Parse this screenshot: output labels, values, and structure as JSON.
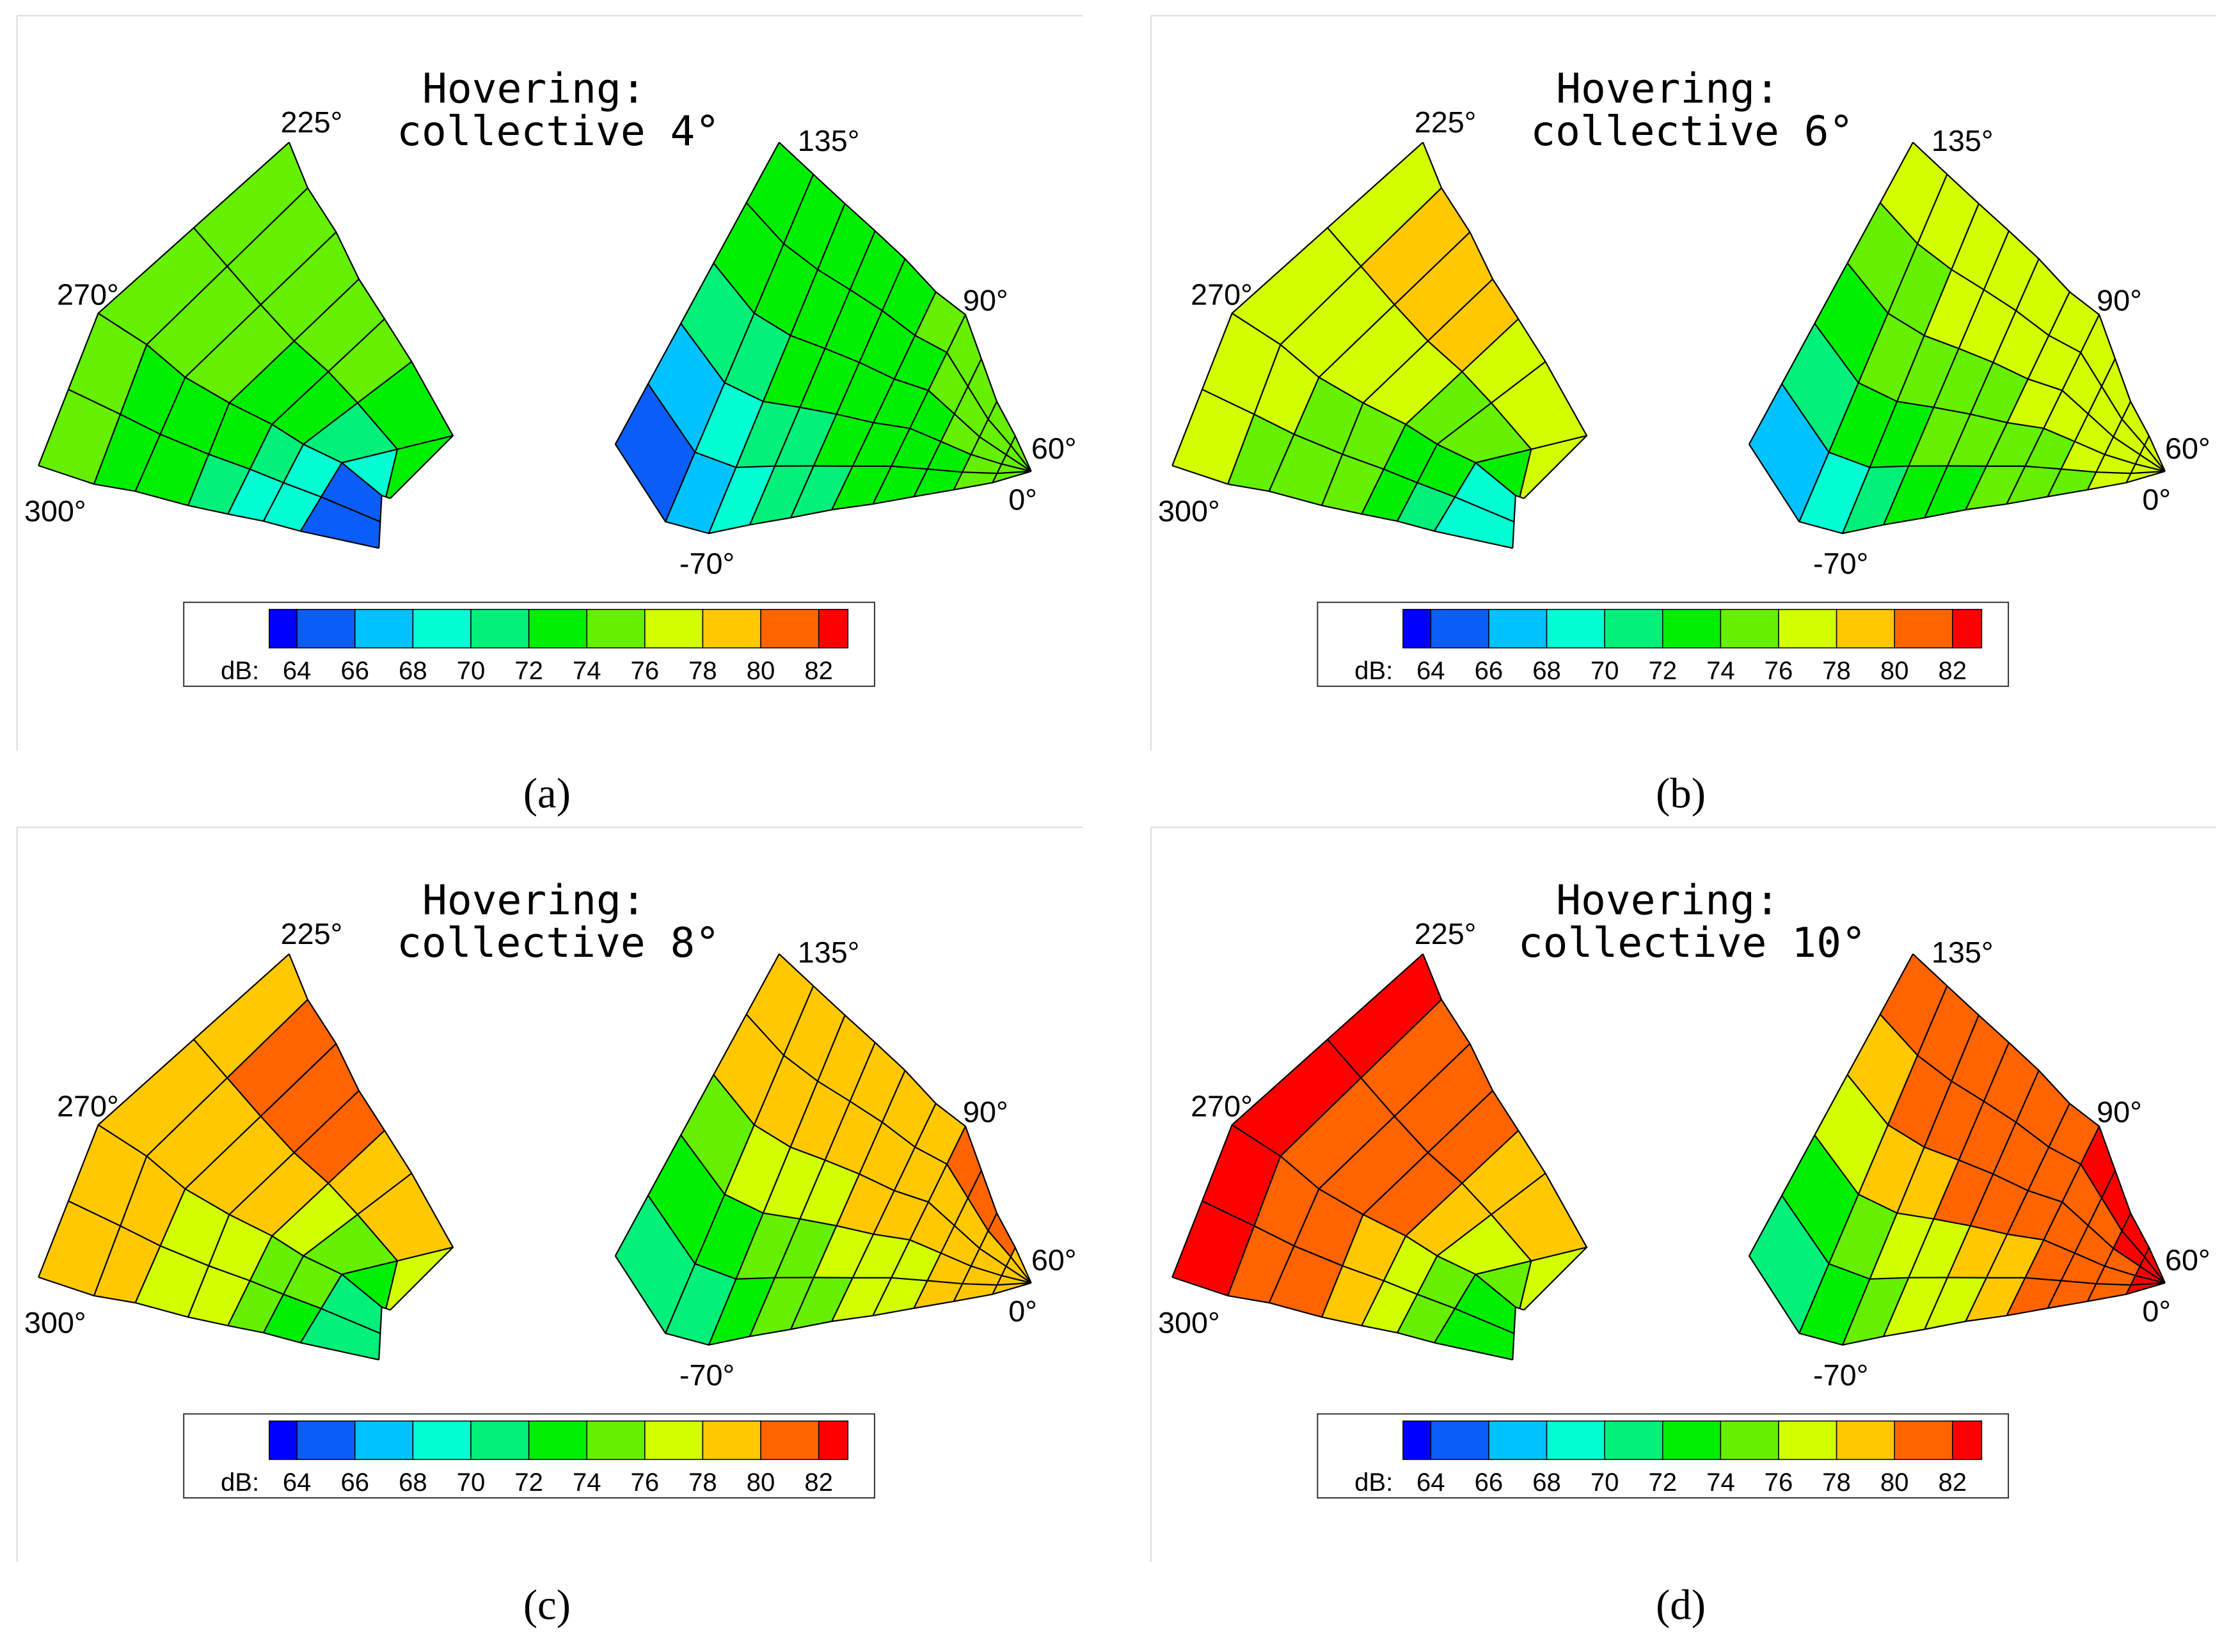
{
  "colorbar": {
    "prefix": "dB:",
    "levels": [
      62,
      64,
      66,
      68,
      70,
      72,
      74,
      76,
      78,
      80,
      82,
      83
    ],
    "tick_labels": [
      "64",
      "66",
      "68",
      "70",
      "72",
      "74",
      "76",
      "78",
      "80",
      "82"
    ],
    "colors": [
      "#0000ff",
      "#0a5df6",
      "#00c2ff",
      "#00ffd2",
      "#00f07a",
      "#00ef00",
      "#64f000",
      "#d2ff00",
      "#ffc800",
      "#ff6400",
      "#ff0000"
    ]
  },
  "angle_labels": {
    "left": [
      "225°",
      "270°",
      "300°"
    ],
    "right": [
      "135°",
      "90°",
      "60°",
      "0°",
      "-70°"
    ]
  },
  "chart_data": [
    {
      "type": "heatmap",
      "panel": "(a)",
      "title_line1": "Hovering:",
      "title_line2": "collective 4°",
      "colorbar_unit": "dB",
      "left_sector": {
        "description_angles": [
          "225°",
          "270°",
          "300°"
        ],
        "values_dB": [
          [
            75,
            75,
            75,
            74,
            74,
            74,
            74,
            73,
            73,
            72
          ],
          [
            75,
            75,
            74,
            74,
            73,
            73,
            72,
            71,
            70,
            68
          ],
          [
            74,
            74,
            73,
            73,
            72,
            71,
            70,
            69,
            67,
            65
          ],
          [
            74,
            73,
            73,
            72,
            71,
            70,
            69,
            68,
            66,
            65
          ]
        ]
      },
      "right_sector": {
        "description_angles": [
          "135°",
          "90°",
          "60°",
          "0°",
          "-70°"
        ],
        "values_dB": [
          [
            73,
            73,
            73,
            73,
            73,
            74,
            74,
            74,
            75,
            75
          ],
          [
            72,
            72,
            73,
            73,
            73,
            73,
            74,
            74,
            75,
            75
          ],
          [
            70,
            71,
            72,
            72,
            73,
            73,
            73,
            74,
            74,
            75
          ],
          [
            66,
            68,
            70,
            71,
            72,
            73,
            73,
            73,
            74,
            75
          ],
          [
            64,
            66,
            68,
            70,
            71,
            72,
            73,
            73,
            74,
            74
          ]
        ]
      }
    },
    {
      "type": "heatmap",
      "panel": "(b)",
      "title_line1": "Hovering:",
      "title_line2": "collective 6°",
      "colorbar_unit": "dB",
      "left_sector": {
        "description_angles": [
          "225°",
          "270°",
          "300°"
        ],
        "values_dB": [
          [
            77,
            77,
            78,
            78,
            78,
            78,
            77,
            77,
            76,
            76
          ],
          [
            77,
            77,
            77,
            76,
            76,
            75,
            75,
            74,
            74,
            73
          ],
          [
            77,
            76,
            76,
            75,
            74,
            74,
            73,
            72,
            71,
            69
          ],
          [
            77,
            76,
            75,
            75,
            74,
            73,
            72,
            71,
            70,
            68
          ]
        ]
      },
      "right_sector": {
        "description_angles": [
          "135°",
          "90°",
          "60°",
          "0°",
          "-70°"
        ],
        "values_dB": [
          [
            77,
            77,
            77,
            77,
            77,
            77,
            77,
            77,
            77,
            77
          ],
          [
            75,
            75,
            76,
            76,
            76,
            77,
            77,
            77,
            77,
            76
          ],
          [
            73,
            74,
            74,
            75,
            75,
            76,
            76,
            76,
            77,
            77
          ],
          [
            70,
            72,
            73,
            74,
            74,
            75,
            75,
            76,
            76,
            76
          ],
          [
            67,
            69,
            71,
            72,
            73,
            74,
            75,
            75,
            76,
            76
          ]
        ]
      }
    },
    {
      "type": "heatmap",
      "panel": "(c)",
      "title_line1": "Hovering:",
      "title_line2": "collective 8°",
      "colorbar_unit": "dB",
      "left_sector": {
        "description_angles": [
          "225°",
          "270°",
          "300°"
        ],
        "values_dB": [
          [
            79,
            79,
            80,
            80,
            81,
            80,
            79,
            78,
            77,
            76
          ],
          [
            79,
            79,
            79,
            78,
            78,
            77,
            76,
            75,
            74,
            73
          ],
          [
            79,
            79,
            78,
            77,
            77,
            76,
            75,
            74,
            73,
            71
          ],
          [
            79,
            78,
            78,
            77,
            76,
            75,
            74,
            73,
            72,
            70
          ]
        ]
      },
      "right_sector": {
        "description_angles": [
          "135°",
          "90°",
          "60°",
          "0°",
          "-70°"
        ],
        "values_dB": [
          [
            79,
            79,
            79,
            79,
            79,
            79,
            80,
            80,
            80,
            79
          ],
          [
            78,
            78,
            78,
            78,
            78,
            79,
            79,
            79,
            79,
            79
          ],
          [
            75,
            76,
            77,
            77,
            78,
            78,
            78,
            78,
            79,
            79
          ],
          [
            72,
            73,
            74,
            75,
            76,
            77,
            77,
            78,
            78,
            79
          ],
          [
            70,
            71,
            72,
            74,
            75,
            76,
            77,
            78,
            78,
            79
          ]
        ]
      }
    },
    {
      "type": "heatmap",
      "panel": "(d)",
      "title_line1": "Hovering:",
      "title_line2": "collective 10°",
      "colorbar_unit": "dB",
      "left_sector": {
        "description_angles": [
          "225°",
          "270°",
          "300°"
        ],
        "values_dB": [
          [
            82,
            82,
            81,
            81,
            81,
            80,
            79,
            78,
            77,
            76
          ],
          [
            82,
            81,
            81,
            80,
            80,
            79,
            78,
            77,
            75,
            74
          ],
          [
            82,
            81,
            81,
            80,
            79,
            78,
            77,
            75,
            74,
            72
          ],
          [
            82,
            81,
            80,
            80,
            79,
            78,
            76,
            75,
            73,
            72
          ]
        ]
      },
      "right_sector": {
        "description_angles": [
          "135°",
          "90°",
          "60°",
          "0°",
          "-70°"
        ],
        "values_dB": [
          [
            81,
            81,
            81,
            81,
            81,
            81,
            82,
            82,
            82,
            82
          ],
          [
            79,
            80,
            80,
            81,
            81,
            81,
            81,
            81,
            82,
            82
          ],
          [
            77,
            78,
            79,
            80,
            80,
            81,
            81,
            81,
            81,
            82
          ],
          [
            73,
            75,
            76,
            77,
            78,
            79,
            80,
            81,
            81,
            82
          ],
          [
            70,
            72,
            74,
            76,
            77,
            79,
            80,
            81,
            81,
            82
          ]
        ]
      }
    }
  ]
}
